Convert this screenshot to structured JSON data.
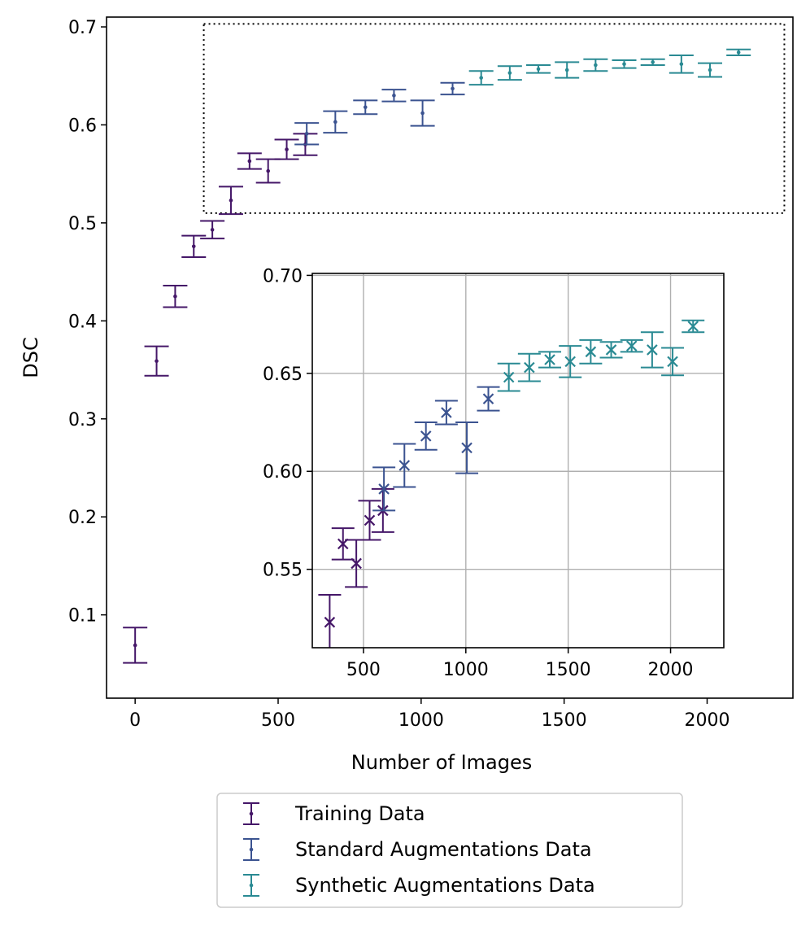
{
  "chart_data": {
    "type": "scatter",
    "title": "",
    "xlabel": "Number of Images",
    "ylabel": "DSC",
    "xlim": [
      -100,
      2300
    ],
    "ylim": [
      0.015,
      0.71
    ],
    "xticks": [
      0,
      500,
      1000,
      1500,
      2000
    ],
    "yticks": [
      0.1,
      0.2,
      0.3,
      0.4,
      0.5,
      0.6,
      0.7
    ],
    "xtick_labels": [
      "0",
      "500",
      "1000",
      "1500",
      "2000"
    ],
    "ytick_labels": [
      "0.1",
      "0.2",
      "0.3",
      "0.4",
      "0.5",
      "0.6",
      "0.7"
    ],
    "zoom_region": {
      "xlim": [
        240,
        2270
      ],
      "ylim": [
        0.51,
        0.703
      ]
    },
    "legend_position": "bottom-center, below plot",
    "series": [
      {
        "name": "Training Data",
        "color": "#451768",
        "x": [
          0,
          75,
          140,
          205,
          270,
          335,
          400,
          465,
          530,
          595
        ],
        "y": [
          0.069,
          0.359,
          0.425,
          0.476,
          0.493,
          0.523,
          0.563,
          0.553,
          0.575,
          0.58
        ],
        "err": [
          0.018,
          0.015,
          0.011,
          0.011,
          0.009,
          0.014,
          0.008,
          0.012,
          0.01,
          0.011
        ]
      },
      {
        "name": "Standard Augmentations Data",
        "color": "#3b5390",
        "x": [
          600,
          700,
          805,
          905,
          1005,
          1110
        ],
        "y": [
          0.591,
          0.603,
          0.618,
          0.63,
          0.612,
          0.637
        ],
        "err": [
          0.011,
          0.011,
          0.007,
          0.006,
          0.013,
          0.006
        ]
      },
      {
        "name": "Synthetic Augmentations Data",
        "color": "#2a8a93",
        "x": [
          1210,
          1310,
          1410,
          1510,
          1610,
          1710,
          1810,
          1910,
          2010,
          2110
        ],
        "y": [
          0.648,
          0.653,
          0.657,
          0.656,
          0.661,
          0.662,
          0.664,
          0.662,
          0.656,
          0.674
        ],
        "err": [
          0.007,
          0.007,
          0.004,
          0.008,
          0.006,
          0.004,
          0.003,
          0.009,
          0.007,
          0.003
        ]
      }
    ],
    "inset": {
      "xlim": [
        250,
        2260
      ],
      "ylim": [
        0.51,
        0.701
      ],
      "xticks": [
        500,
        1000,
        1500,
        2000
      ],
      "yticks": [
        0.55,
        0.6,
        0.65,
        0.7
      ],
      "xtick_labels": [
        "500",
        "1000",
        "1500",
        "2000"
      ],
      "ytick_labels": [
        "0.55",
        "0.60",
        "0.65",
        "0.70"
      ],
      "grid": true,
      "marker": "x"
    }
  }
}
